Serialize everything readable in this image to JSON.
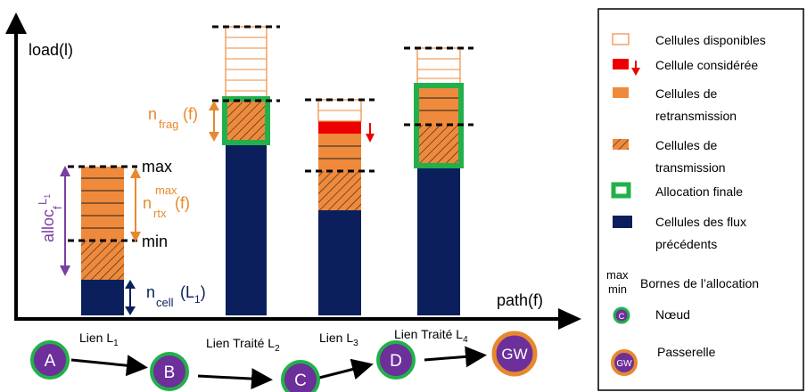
{
  "axes": {
    "y_label": "load(l)",
    "x_label": "path(f)"
  },
  "annotations": {
    "n_frag": {
      "base": "n",
      "sub": "frag",
      "tail": "(f)"
    },
    "n_rtx": {
      "base": "n",
      "sub": "rtx",
      "sup": "max",
      "tail": "(f)"
    },
    "alloc": {
      "base": "alloc",
      "sub": "f",
      "sup": "L",
      "sup_sub": "1"
    },
    "n_cell": {
      "base": "n",
      "sub": "cell",
      "tail": "(L",
      "tail_sub": "1",
      "tail_end": ")"
    },
    "max": "max",
    "min": "min"
  },
  "links": [
    {
      "label": "Lien L",
      "sub": "1"
    },
    {
      "label": "Lien Traité L",
      "sub": "2"
    },
    {
      "label": "Lien L",
      "sub": "3"
    },
    {
      "label": "Lien Traité L",
      "sub": "4"
    }
  ],
  "nodes": [
    "A",
    "B",
    "C",
    "D",
    "GW"
  ],
  "legend": {
    "available": [
      "Cellules disponibles"
    ],
    "considered": [
      "Cellule considérée"
    ],
    "retransmission": [
      "Cellules de",
      "retransmission"
    ],
    "transmission": [
      "Cellules de",
      "transmission"
    ],
    "final": [
      "Allocation finale"
    ],
    "previous": [
      "Cellules des flux",
      "précédents"
    ],
    "bounds_max": "max",
    "bounds_min": "min",
    "bounds": [
      "Bornes de l’allocation"
    ],
    "node_icon": "C",
    "node": [
      "Nœud"
    ],
    "gateway_icon": "GW",
    "gateway": [
      "Passerelle"
    ]
  },
  "colors": {
    "navy": "#0b1f5c",
    "orange": "#ef8a3c",
    "red": "#ee0000",
    "green": "#22b04a",
    "purple": "#6d2f9a",
    "annot_orange": "#e8882e",
    "annot_purple": "#7a3ea0",
    "gw_ring": "#e8882e"
  }
}
